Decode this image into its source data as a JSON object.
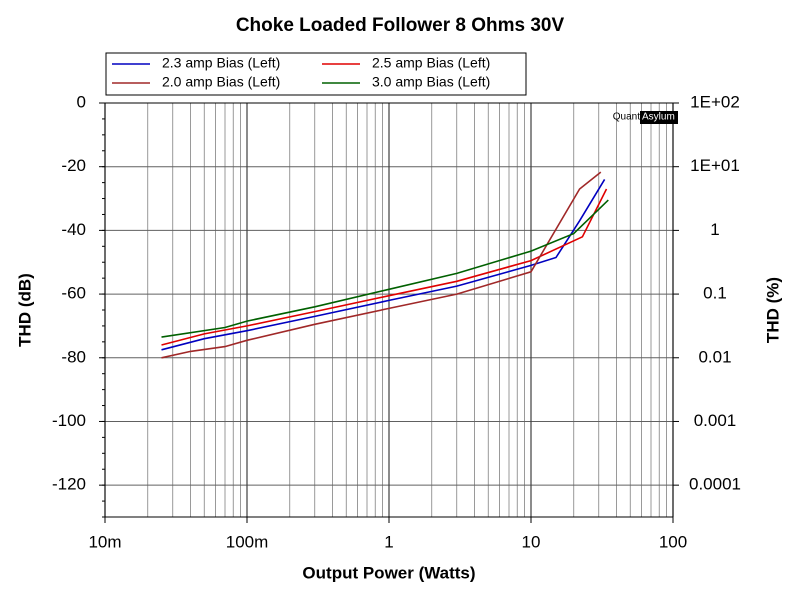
{
  "chart_data": {
    "type": "line",
    "title": "Choke Loaded Follower 8 Ohms 30V",
    "xlabel": "Output Power (Watts)",
    "ylabel": "THD (dB)",
    "y2label": "THD (%)",
    "watermark": [
      "Quant",
      "Asylum"
    ],
    "xscale": "log",
    "xlim": [
      0.01,
      100
    ],
    "xticks": [
      {
        "value": 0.01,
        "label": "10m"
      },
      {
        "value": 0.1,
        "label": "100m"
      },
      1,
      10,
      100
    ],
    "ylim": [
      -130,
      0
    ],
    "yticks": [
      0,
      -20,
      -40,
      -60,
      -80,
      -100,
      -120
    ],
    "y2scale": "log",
    "y2lim": [
      3.16228e-05,
      100
    ],
    "y2ticks": [
      {
        "value": 100,
        "label": "1E+02"
      },
      {
        "value": 10,
        "label": "1E+01"
      },
      1,
      0.1,
      0.01,
      0.001,
      0.0001
    ],
    "grid": true,
    "minor_grid": true,
    "legend": "top-left",
    "series": [
      {
        "name": "2.3 amp Bias (Left)",
        "color": "#0000c0",
        "x": [
          0.025,
          0.05,
          0.1,
          0.3,
          1,
          3,
          10,
          15,
          22,
          33
        ],
        "values": [
          -77.5,
          -74,
          -71.5,
          -67,
          -62,
          -57.5,
          -51,
          -48.5,
          -37,
          -24
        ]
      },
      {
        "name": "2.5 amp Bias (Left)",
        "color": "#e00000",
        "x": [
          0.025,
          0.05,
          0.1,
          0.3,
          1,
          3,
          10,
          23,
          34
        ],
        "values": [
          -76,
          -72.5,
          -70,
          -65.5,
          -60.5,
          -56,
          -49.5,
          -42,
          -27
        ]
      },
      {
        "name": "2.0 amp Bias (Left)",
        "color": "#a02828",
        "x": [
          0.025,
          0.04,
          0.07,
          0.1,
          0.3,
          1,
          3,
          10,
          22,
          31
        ],
        "values": [
          -80,
          -78,
          -76.5,
          -74.5,
          -69.5,
          -64.5,
          -60,
          -53,
          -27,
          -21.7
        ]
      },
      {
        "name": "3.0 amp Bias (Left)",
        "color": "#006000",
        "x": [
          0.025,
          0.07,
          0.1,
          0.3,
          1,
          3,
          10,
          20,
          35
        ],
        "values": [
          -73.5,
          -70.5,
          -68.5,
          -64,
          -58.5,
          -53.5,
          -46.5,
          -41,
          -30.5
        ]
      }
    ]
  }
}
